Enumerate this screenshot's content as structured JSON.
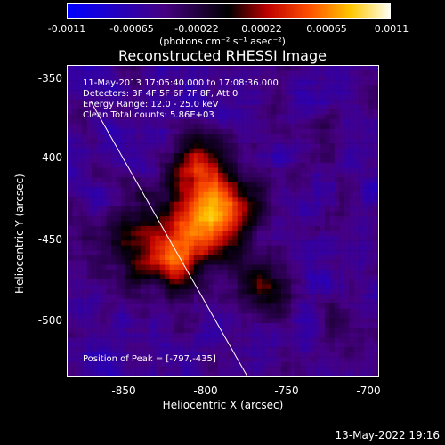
{
  "colorbar": {
    "ticks": [
      "-0.0011",
      "-0.00065",
      "-0.00022",
      "0.00022",
      "0.00065",
      "0.0011"
    ],
    "units": "(photons cm⁻² s⁻¹ asec⁻²)"
  },
  "title": "Reconstructed RHESSI Image",
  "annotations": {
    "time_range": "11-May-2013 17:05:40.000 to 17:08:36.000",
    "detectors": "Detectors: 3F 4F 5F 6F 7F 8F, Att 0",
    "energy": "Energy Range: 12.0 - 25.0 keV",
    "clean": "Clean     Total counts: 5.86E+03",
    "peak": "Position of Peak = [-797,-435]"
  },
  "axes": {
    "xlabel": "Heliocentric X (arcsec)",
    "ylabel": "Heliocentric Y (arcsec)",
    "xticks": [
      "-850",
      "-800",
      "-750",
      "-700"
    ],
    "yticks": [
      "-350",
      "-400",
      "-450",
      "-500"
    ],
    "xlim": [
      -878,
      -688
    ],
    "ylim": [
      -535,
      -345
    ]
  },
  "timestamp": "13-May-2022 19:16",
  "colors": {
    "background": "#000000",
    "foreground": "#ffffff"
  }
}
